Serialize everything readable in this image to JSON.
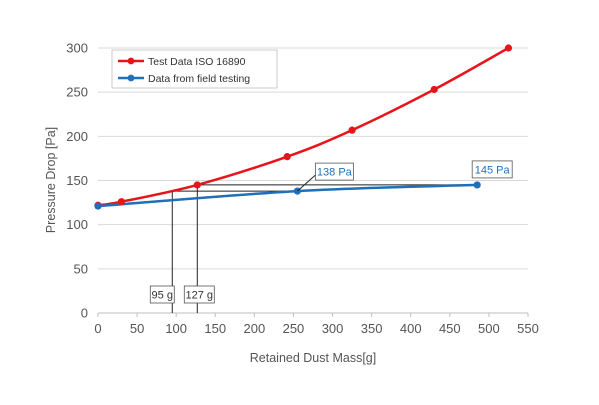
{
  "chart_data": {
    "type": "line",
    "xlabel": "Retained Dust Mass[g]",
    "ylabel": "Pressure Drop [Pa]",
    "xlim": [
      0,
      550
    ],
    "ylim": [
      0,
      300
    ],
    "x_ticks": [
      0,
      50,
      100,
      150,
      200,
      250,
      300,
      350,
      400,
      450,
      500,
      550
    ],
    "y_ticks": [
      0,
      50,
      100,
      150,
      200,
      250,
      300
    ],
    "grid": "horizontal",
    "legend_position": "top-left",
    "series": [
      {
        "name": "Test Data ISO 16890",
        "color": "#e8141b",
        "points": [
          {
            "x": 0,
            "y": 122
          },
          {
            "x": 30,
            "y": 126
          },
          {
            "x": 127,
            "y": 145
          },
          {
            "x": 242,
            "y": 177
          },
          {
            "x": 325,
            "y": 207
          },
          {
            "x": 430,
            "y": 253
          },
          {
            "x": 525,
            "y": 300
          }
        ]
      },
      {
        "name": "Data from field testing",
        "color": "#1f6fba",
        "points": [
          {
            "x": 0,
            "y": 121
          },
          {
            "x": 255,
            "y": 138
          },
          {
            "x": 485,
            "y": 145
          }
        ]
      }
    ],
    "annotations": [
      {
        "text": "138 Pa",
        "x": 255,
        "y": 138,
        "color": "#1f6fba"
      },
      {
        "text": "145 Pa",
        "x": 485,
        "y": 145,
        "color": "#1f6fba"
      },
      {
        "text": "95 g",
        "x": 95,
        "y": 138,
        "color": "#333333"
      },
      {
        "text": "127 g",
        "x": 127,
        "y": 145,
        "color": "#333333"
      }
    ]
  }
}
